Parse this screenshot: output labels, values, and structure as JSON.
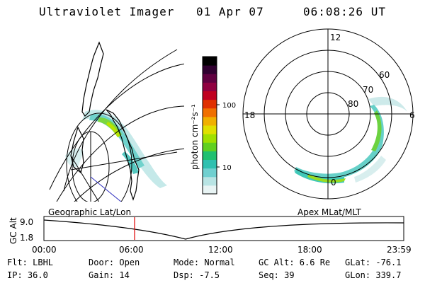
{
  "header": {
    "instrument": "Ultraviolet Imager",
    "date": "01 Apr 07",
    "time": "06:08:26 UT"
  },
  "geo_panel": {
    "label": "Geographic Lat/Lon"
  },
  "apex_panel": {
    "label": "Apex MLat/MLT",
    "mlt_labels": [
      "12",
      "18",
      "6",
      "0"
    ],
    "lat_labels": [
      "60",
      "70",
      "80"
    ]
  },
  "colorbar": {
    "unit_label": "photon cm⁻²s⁻¹",
    "tick_labels": [
      "100",
      "10"
    ],
    "colors": [
      "#e8f4f4",
      "#b8e4e4",
      "#70d0d0",
      "#30c0b0",
      "#20c070",
      "#60d020",
      "#a0e000",
      "#e0e000",
      "#f0b000",
      "#f07000",
      "#e03000",
      "#c00020",
      "#900040",
      "#600040",
      "#300030",
      "#000000"
    ]
  },
  "timeline": {
    "axis_label": "GC Alt",
    "y_labels": [
      "9.0",
      "1.8"
    ],
    "x_labels": [
      "00:00",
      "06:00",
      "12:00",
      "18:00",
      "23:59"
    ],
    "cursor_time": "06:08:26",
    "cursor_color": "#e00000"
  },
  "status": {
    "rows": [
      [
        "Flt: LBHL",
        "Door: Open",
        "Mode: Normal",
        "GC Alt: 6.6 Re",
        "GLat: -76.1"
      ],
      [
        "IP: 36.0",
        "Gain: 14",
        "Dsp:   -7.5",
        "Seq: 39",
        "GLon: 339.7"
      ]
    ]
  }
}
